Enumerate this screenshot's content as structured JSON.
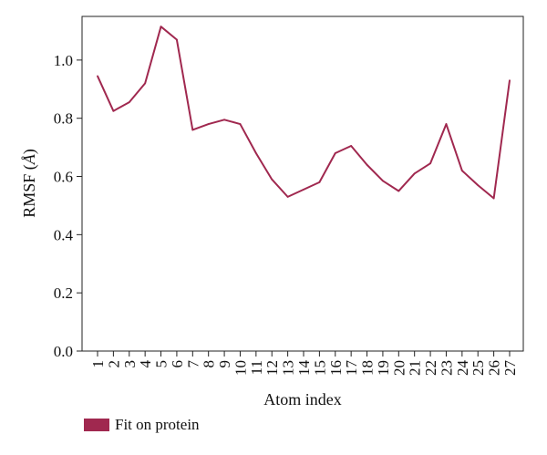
{
  "chart_data": {
    "type": "line",
    "title": "",
    "xlabel": "Atom index",
    "ylabel_main": "RMSF (",
    "ylabel_unit": "Å",
    "ylabel_close": ")",
    "categories": [
      "1",
      "2",
      "3",
      "4",
      "5",
      "6",
      "7",
      "8",
      "9",
      "10",
      "11",
      "12",
      "13",
      "14",
      "15",
      "16",
      "17",
      "18",
      "19",
      "20",
      "21",
      "22",
      "23",
      "24",
      "25",
      "26",
      "27"
    ],
    "series": [
      {
        "name": "Fit on protein",
        "color": "#a0284f",
        "values": [
          0.945,
          0.825,
          0.855,
          0.92,
          1.115,
          1.07,
          0.76,
          0.78,
          0.795,
          0.78,
          0.68,
          0.59,
          0.53,
          0.555,
          0.58,
          0.68,
          0.705,
          0.64,
          0.585,
          0.55,
          0.61,
          0.645,
          0.78,
          0.62,
          0.57,
          0.525,
          0.93
        ]
      }
    ],
    "ylim": [
      0.0,
      1.15
    ],
    "yticks": [
      0.0,
      0.2,
      0.4,
      0.6,
      0.8,
      1.0
    ],
    "ytick_labels": [
      "0.0",
      "0.2",
      "0.4",
      "0.6",
      "0.8",
      "1.0"
    ],
    "grid": false,
    "legend_position": "bottom-left"
  }
}
